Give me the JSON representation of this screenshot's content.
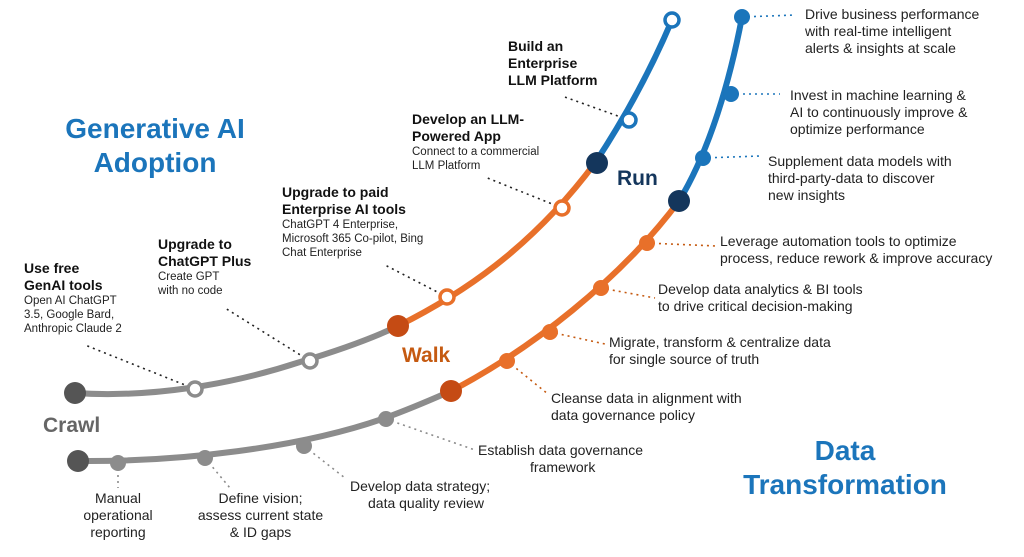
{
  "titles": {
    "genai": [
      "Generative AI",
      "Adoption"
    ],
    "data": [
      "Data",
      "Transformation"
    ]
  },
  "stages": {
    "crawl": "Crawl",
    "walk": "Walk",
    "run": "Run"
  },
  "genai_steps": [
    {
      "title": [
        "Use free",
        "GenAI tools"
      ],
      "detail": [
        "Open AI ChatGPT",
        "3.5, Google Bard,",
        "Anthropic Claude 2"
      ]
    },
    {
      "title": [
        "Upgrade to",
        "ChatGPT Plus"
      ],
      "detail": [
        "Create GPT",
        "with no code"
      ]
    },
    {
      "title": [
        "Upgrade to paid",
        "Enterprise AI tools"
      ],
      "detail": [
        "ChatGPT 4 Enterprise,",
        "Microsoft 365 Co-pilot, Bing",
        "Chat Enterprise"
      ]
    },
    {
      "title": [
        "Develop an LLM-",
        "Powered App"
      ],
      "detail": [
        "Connect to a commercial",
        "LLM Platform"
      ]
    },
    {
      "title": [
        "Build an",
        "Enterprise",
        "LLM Platform"
      ],
      "detail": []
    }
  ],
  "data_steps": [
    [
      "Manual",
      "operational",
      "reporting"
    ],
    [
      "Define vision;",
      "assess current state",
      "& ID gaps"
    ],
    [
      "Develop data strategy;",
      "data quality review"
    ],
    [
      "Establish data governance",
      "framework"
    ],
    [
      "Cleanse data in alignment with",
      "data governance policy"
    ],
    [
      "Migrate, transform & centralize data",
      "for single source of truth"
    ],
    [
      "Develop data analytics & BI tools",
      "to drive critical decision-making"
    ],
    [
      "Leverage automation tools to optimize",
      "process, reduce rework & improve accuracy"
    ],
    [
      "Supplement data models with",
      "third-party-data to discover",
      "new insights"
    ],
    [
      "Invest in machine learning &",
      "AI to continuously improve &",
      "optimize performance"
    ],
    [
      "Drive business performance",
      "with real-time intelligent",
      "alerts & insights at scale"
    ]
  ],
  "colors": {
    "gray": "#8c8c8c",
    "dark_gray": "#555555",
    "orange": "#e8702a",
    "dark_orange": "#c54b14",
    "blue": "#1b75bb",
    "navy": "#14365c",
    "title_blue": "#1b75bb",
    "walk_text": "#c55a11",
    "crawl_text": "#666666",
    "run_text": "#14365c"
  }
}
